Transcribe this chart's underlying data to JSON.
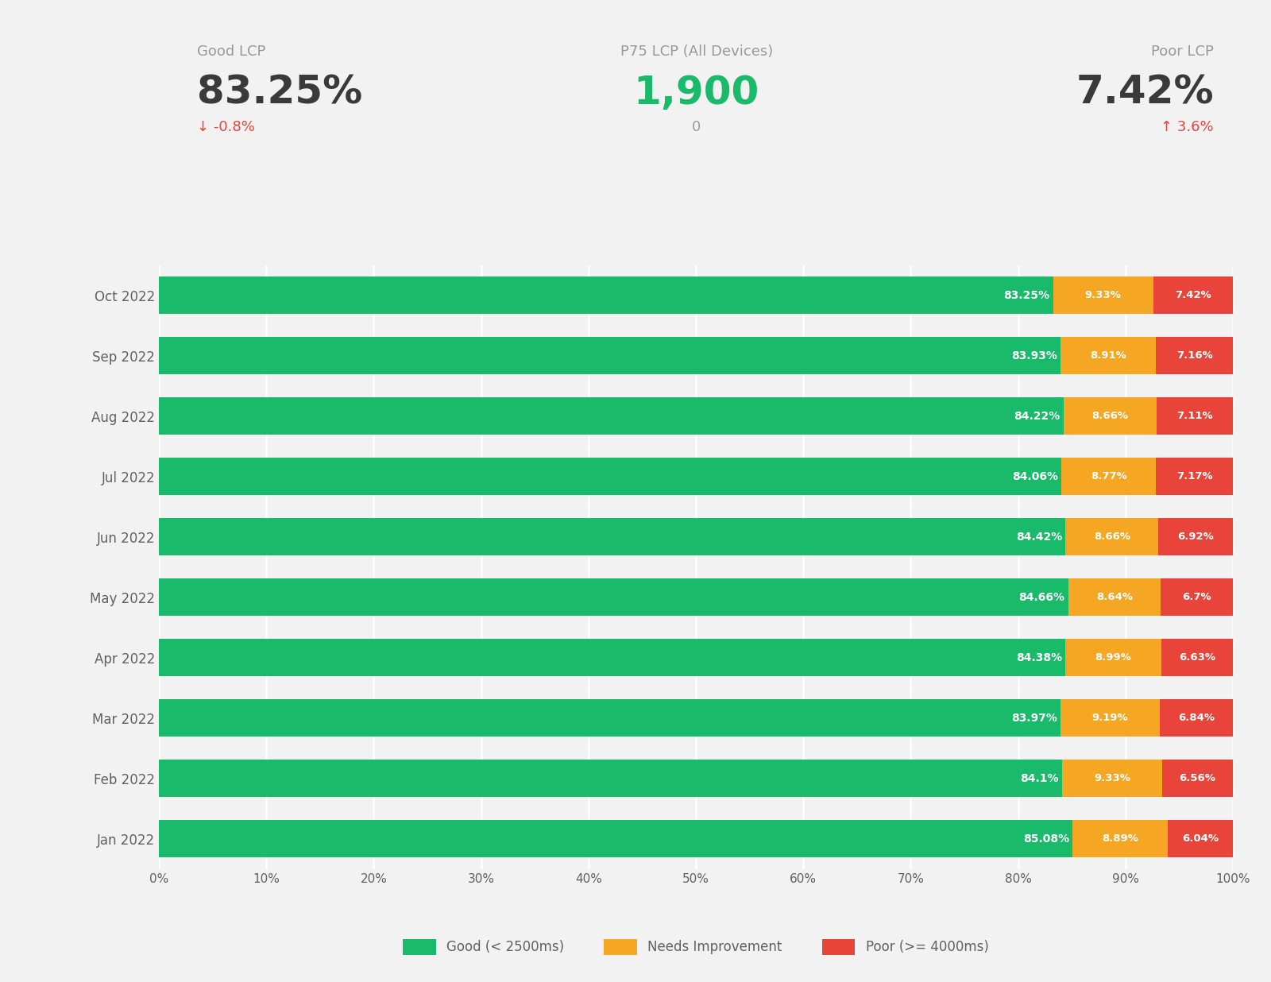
{
  "months": [
    "Oct 2022",
    "Sep 2022",
    "Aug 2022",
    "Jul 2022",
    "Jun 2022",
    "May 2022",
    "Apr 2022",
    "Mar 2022",
    "Feb 2022",
    "Jan 2022"
  ],
  "good": [
    83.25,
    83.93,
    84.22,
    84.06,
    84.42,
    84.66,
    84.38,
    83.97,
    84.1,
    85.08
  ],
  "needs": [
    9.33,
    8.91,
    8.66,
    8.77,
    8.66,
    8.64,
    8.99,
    9.19,
    9.33,
    8.89
  ],
  "poor": [
    7.42,
    7.16,
    7.11,
    7.17,
    6.92,
    6.7,
    6.63,
    6.84,
    6.56,
    6.04
  ],
  "good_color": "#1aba6b",
  "needs_color": "#f5a623",
  "poor_color": "#e8443a",
  "background_color": "#f2f2f2",
  "header_good_lcp_label": "Good LCP",
  "header_good_lcp_value": "83.25%",
  "header_good_lcp_change": "↓ -0.8%",
  "header_p75_label": "P75 LCP (All Devices)",
  "header_p75_value": "1,900",
  "header_p75_change": "0",
  "header_poor_lcp_label": "Poor LCP",
  "header_poor_lcp_value": "7.42%",
  "header_poor_lcp_change": "↑ 3.6%",
  "legend_good": "Good (< 2500ms)",
  "legend_needs": "Needs Improvement",
  "legend_poor": "Poor (>= 4000ms)",
  "text_color_dark": "#606060",
  "text_color_header_val": "#3a3a3a",
  "text_color_green": "#1aba6b",
  "text_color_red": "#e8443a",
  "text_color_gray": "#999999",
  "bar_height": 0.62
}
